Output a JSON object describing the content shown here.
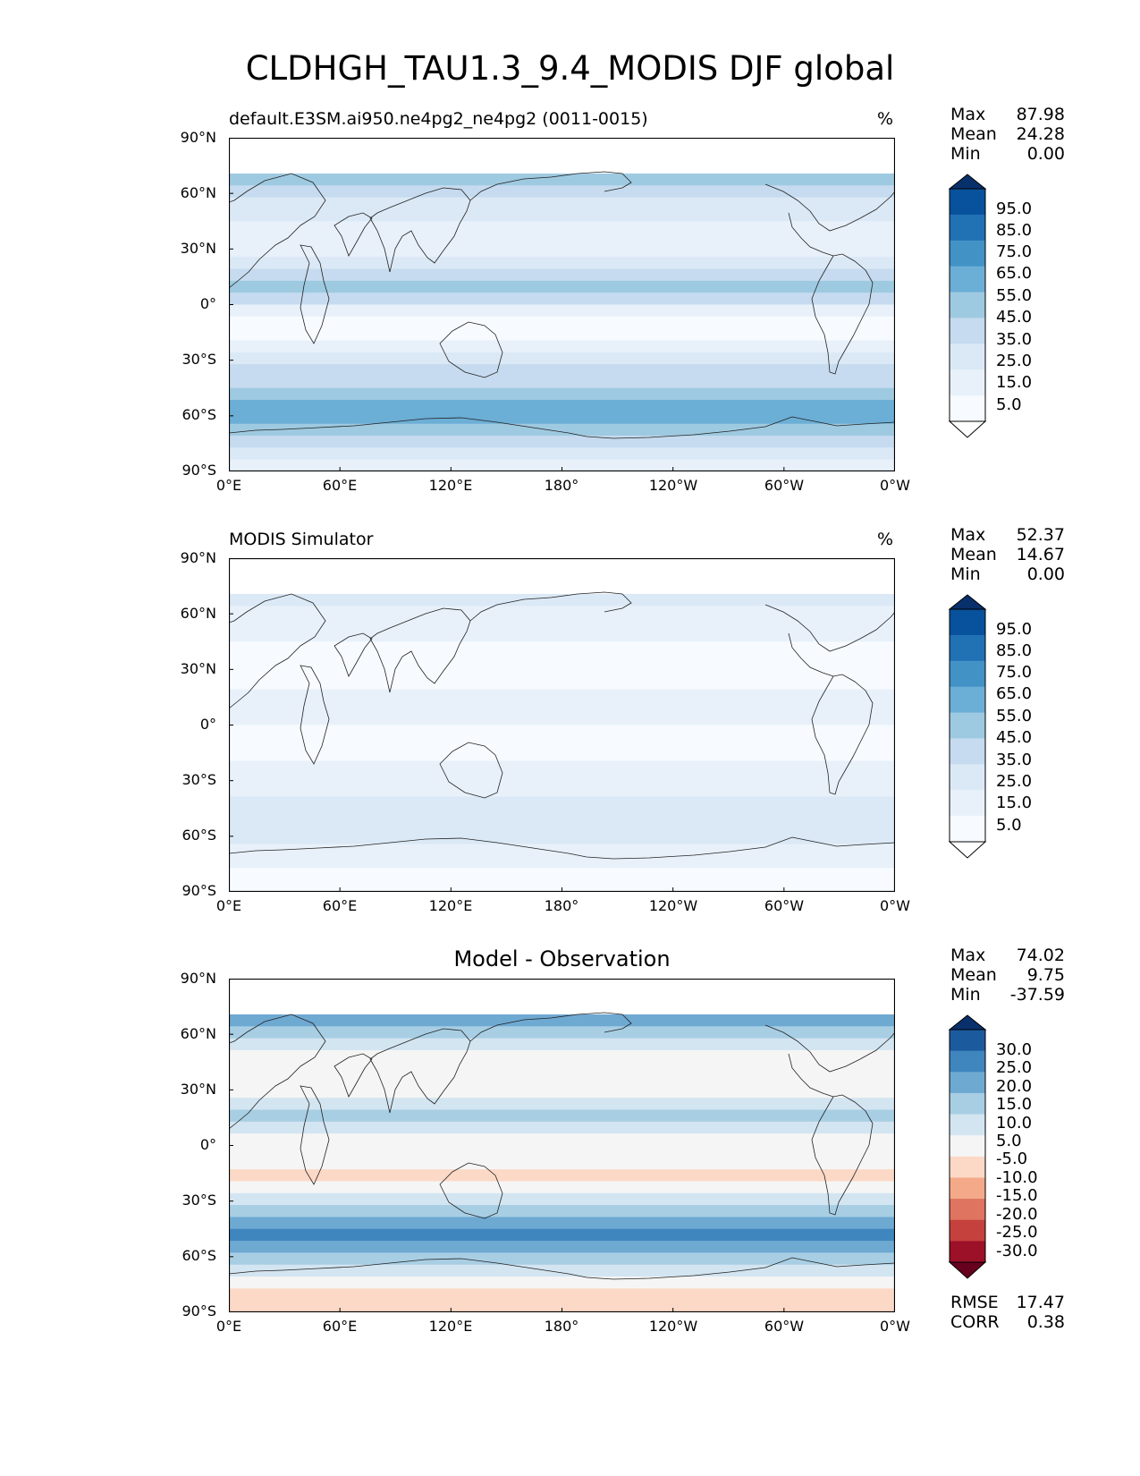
{
  "figure_title": "CLDHGH_TAU1.3_9.4_MODIS DJF global",
  "chart_data": [
    {
      "type": "heatmap",
      "title": "default.E3SM.ai950.ne4pg2_ne4pg2 (0011-0015)",
      "units": "%",
      "colormap": "Blues",
      "stats": {
        "max_label": "Max",
        "max": "87.98",
        "mean_label": "Mean",
        "mean": "24.28",
        "min_label": "Min",
        "min": "0.00"
      },
      "colorbar_ticks": [
        "95.0",
        "85.0",
        "75.0",
        "65.0",
        "55.0",
        "45.0",
        "35.0",
        "25.0",
        "15.0",
        "5.0"
      ],
      "colorbar_colors": [
        "#08306b",
        "#08519c",
        "#2171b5",
        "#4292c6",
        "#6baed6",
        "#9ecae1",
        "#c6dbef",
        "#dbe9f6",
        "#e8f1fa",
        "#f7fbff",
        "#ffffff"
      ],
      "x_ticks": [
        "0°E",
        "60°E",
        "120°E",
        "180°",
        "120°W",
        "60°W",
        "0°W"
      ],
      "y_ticks": [
        "90°N",
        "60°N",
        "30°N",
        "0°",
        "30°S",
        "60°S",
        "90°S"
      ],
      "xlim": [
        0,
        360
      ],
      "ylim": [
        -90,
        90
      ],
      "lat_band_pattern": [
        0,
        6,
        6,
        5,
        4,
        3,
        3,
        2,
        2,
        2,
        3,
        4,
        5,
        4,
        2,
        1,
        1,
        2,
        3,
        4,
        4,
        5,
        6,
        6,
        5,
        4,
        3,
        2
      ],
      "data_cutoff_lat": 75,
      "missing_fill": "#ffffff"
    },
    {
      "type": "heatmap",
      "title": "MODIS Simulator",
      "units": "%",
      "colormap": "Blues",
      "stats": {
        "max_label": "Max",
        "max": "52.37",
        "mean_label": "Mean",
        "mean": "14.67",
        "min_label": "Min",
        "min": "0.00"
      },
      "colorbar_ticks": [
        "95.0",
        "85.0",
        "75.0",
        "65.0",
        "55.0",
        "45.0",
        "35.0",
        "25.0",
        "15.0",
        "5.0"
      ],
      "colorbar_colors": [
        "#08306b",
        "#08519c",
        "#2171b5",
        "#4292c6",
        "#6baed6",
        "#9ecae1",
        "#c6dbef",
        "#dbe9f6",
        "#e8f1fa",
        "#f7fbff",
        "#ffffff"
      ],
      "x_ticks": [
        "0°E",
        "60°E",
        "120°E",
        "180°",
        "120°W",
        "60°W",
        "0°W"
      ],
      "y_ticks": [
        "90°N",
        "60°N",
        "30°N",
        "0°",
        "30°S",
        "60°S",
        "90°S"
      ],
      "xlim": [
        0,
        360
      ],
      "ylim": [
        -90,
        90
      ],
      "lat_band_pattern": [
        0,
        3,
        3,
        3,
        2,
        2,
        2,
        1,
        1,
        1,
        1,
        2,
        2,
        2,
        1,
        1,
        1,
        2,
        2,
        2,
        3,
        3,
        3,
        3,
        2,
        2,
        1,
        1
      ],
      "data_cutoff_lat": 73,
      "missing_fill": "#ffffff"
    },
    {
      "type": "heatmap",
      "title": "Model - Observation",
      "units": "",
      "colormap": "RdBu",
      "stats": {
        "max_label": "Max",
        "max": "74.02",
        "mean_label": "Mean",
        "mean": "9.75",
        "min_label": "Min",
        "min": "-37.59"
      },
      "colorbar_ticks": [
        "30.0",
        "25.0",
        "20.0",
        "15.0",
        "10.0",
        "5.0",
        "-5.0",
        "-10.0",
        "-15.0",
        "-20.0",
        "-25.0",
        "-30.0"
      ],
      "colorbar_colors": [
        "#08306b",
        "#1c5a9e",
        "#3f86bf",
        "#6ea9d2",
        "#a8cee4",
        "#d3e5f1",
        "#f5f5f5",
        "#fbd9c6",
        "#f4aa89",
        "#df7460",
        "#c4413d",
        "#9c1028",
        "#67001f"
      ],
      "x_ticks": [
        "0°E",
        "60°E",
        "120°E",
        "180°",
        "120°W",
        "60°W",
        "0°W"
      ],
      "y_ticks": [
        "90°N",
        "60°N",
        "30°N",
        "0°",
        "30°S",
        "60°S",
        "90°S"
      ],
      "xlim": [
        0,
        360
      ],
      "ylim": [
        -90,
        90
      ],
      "lat_band_pattern": [
        6,
        0,
        2,
        3,
        4,
        5,
        6,
        6,
        6,
        6,
        5,
        4,
        5,
        6,
        6,
        6,
        7,
        6,
        5,
        4,
        3,
        2,
        3,
        4,
        5,
        6,
        7,
        7
      ],
      "data_cutoff_lat": 75,
      "missing_fill": "#ffffff",
      "rmse_label": "RMSE",
      "rmse": "17.47",
      "corr_label": "CORR",
      "corr": "0.38"
    }
  ]
}
